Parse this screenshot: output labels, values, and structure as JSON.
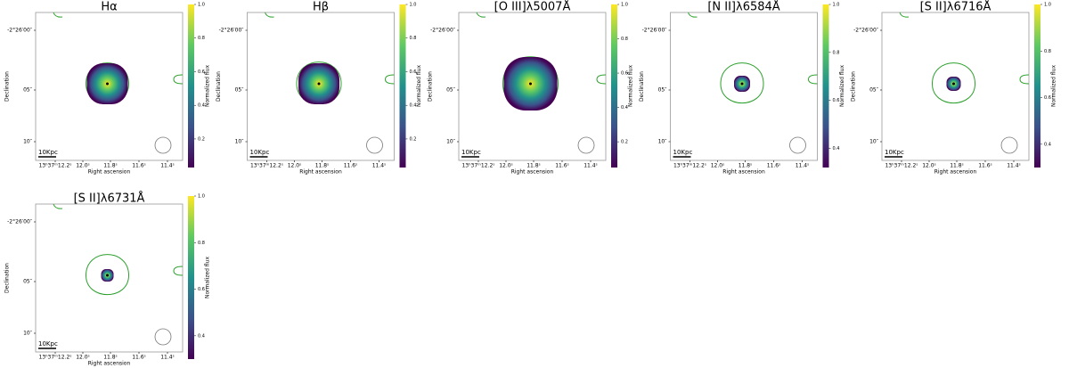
{
  "shared": {
    "x_axis_label": "Right ascension",
    "y_axis_label": "Declination",
    "colorbar_label": "Normalized flux",
    "scale_bar": "10Kpc",
    "x_ticks": [
      "13ʰ37ᵐ12.2ˢ",
      "12.0ˢ",
      "11.8ˢ",
      "11.6ˢ",
      "11.4ˢ"
    ],
    "y_ticks": [
      "-2°26′00″",
      "05″",
      "10″"
    ]
  },
  "panels": [
    {
      "title": "Hα",
      "colorbar_range": [
        0.03,
        1.0
      ],
      "colorbar_ticks": [
        {
          "value": 0.2,
          "label": "0.2"
        },
        {
          "value": 0.4,
          "label": "0.4"
        },
        {
          "value": 0.6,
          "label": "0.6"
        },
        {
          "value": 0.8,
          "label": "0.8"
        },
        {
          "value": 1.0,
          "label": "1.0"
        }
      ]
    },
    {
      "title": "Hβ",
      "colorbar_range": [
        0.03,
        1.0
      ],
      "colorbar_ticks": [
        {
          "value": 0.2,
          "label": "0.2"
        },
        {
          "value": 0.4,
          "label": "0.4"
        },
        {
          "value": 0.6,
          "label": "0.6"
        },
        {
          "value": 0.8,
          "label": "0.8"
        },
        {
          "value": 1.0,
          "label": "1.0"
        }
      ]
    },
    {
      "title": "[O III]λ5007Å",
      "colorbar_range": [
        0.05,
        1.0
      ],
      "colorbar_ticks": [
        {
          "value": 0.2,
          "label": "0.2"
        },
        {
          "value": 0.4,
          "label": "0.4"
        },
        {
          "value": 0.6,
          "label": "0.6"
        },
        {
          "value": 0.8,
          "label": "0.8"
        },
        {
          "value": 1.0,
          "label": "1.0"
        }
      ]
    },
    {
      "title": "[N II]λ6584Å",
      "colorbar_range": [
        0.32,
        1.0
      ],
      "colorbar_ticks": [
        {
          "value": 0.4,
          "label": "0.4"
        },
        {
          "value": 0.6,
          "label": "0.6"
        },
        {
          "value": 0.8,
          "label": "0.8"
        },
        {
          "value": 1.0,
          "label": "1.0"
        }
      ]
    },
    {
      "title": "[S II]λ6716Å",
      "colorbar_range": [
        0.3,
        1.0
      ],
      "colorbar_ticks": [
        {
          "value": 0.4,
          "label": "0.4"
        },
        {
          "value": 0.6,
          "label": "0.6"
        },
        {
          "value": 0.8,
          "label": "0.8"
        },
        {
          "value": 1.0,
          "label": "1.0"
        }
      ]
    },
    {
      "title": "[S II]λ6731Å",
      "colorbar_range": [
        0.3,
        1.0
      ],
      "colorbar_ticks": [
        {
          "value": 0.4,
          "label": "0.4"
        },
        {
          "value": 0.6,
          "label": "0.6"
        },
        {
          "value": 0.8,
          "label": "0.8"
        },
        {
          "value": 1.0,
          "label": "1.0"
        }
      ]
    }
  ]
}
